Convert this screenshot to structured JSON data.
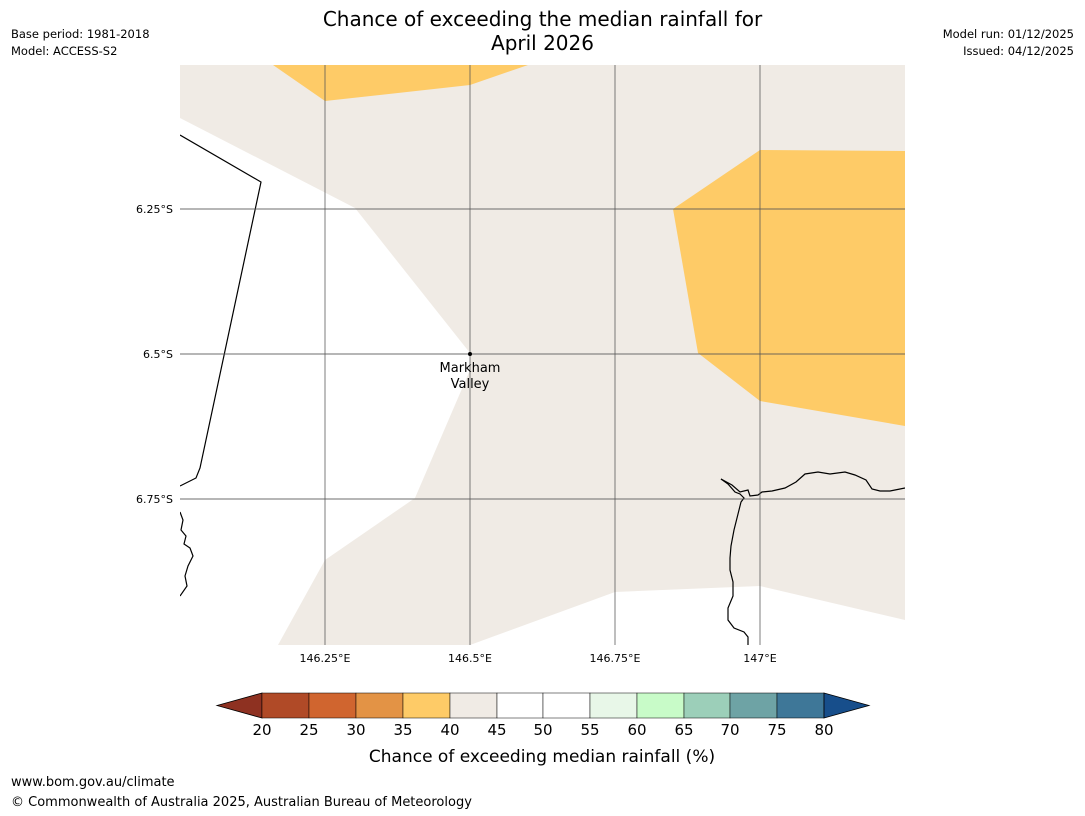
{
  "title_line1": "Chance of exceeding the median rainfall for",
  "title_line2": "April 2026",
  "base_period": "Base period: 1981-2018",
  "model": "Model: ACCESS-S2",
  "model_run": "Model run: 01/12/2025",
  "issued": "Issued: 04/12/2025",
  "map": {
    "location_label_line1": "Markham",
    "location_label_line2": "Valley",
    "lat_labels": [
      "6.25°S",
      "6.5°S",
      "6.75°S"
    ],
    "lon_labels": [
      "146.25°E",
      "146.5°E",
      "146.75°E",
      "147°E"
    ],
    "region_colors": {
      "40-45": "#f0ebe5",
      "35-40": "#fecb67",
      "45-55": "#ffffff"
    }
  },
  "colorbar": {
    "ticks": [
      "20",
      "25",
      "30",
      "35",
      "40",
      "45",
      "50",
      "55",
      "60",
      "65",
      "70",
      "75",
      "80"
    ],
    "colors": [
      "#8e3121",
      "#b04a27",
      "#d0652f",
      "#e39345",
      "#fecb67",
      "#f0ebe5",
      "#ffffff",
      "#ffffff",
      "#e8f7e8",
      "#c8fbc8",
      "#9ccfb9",
      "#6ea3a5",
      "#3e7798",
      "#174e8b"
    ],
    "label": "Chance of exceeding median rainfall (%)"
  },
  "footer": {
    "url": "www.bom.gov.au/climate",
    "copyright": "© Commonwealth of Australia 2025, Australian Bureau of Meteorology"
  }
}
